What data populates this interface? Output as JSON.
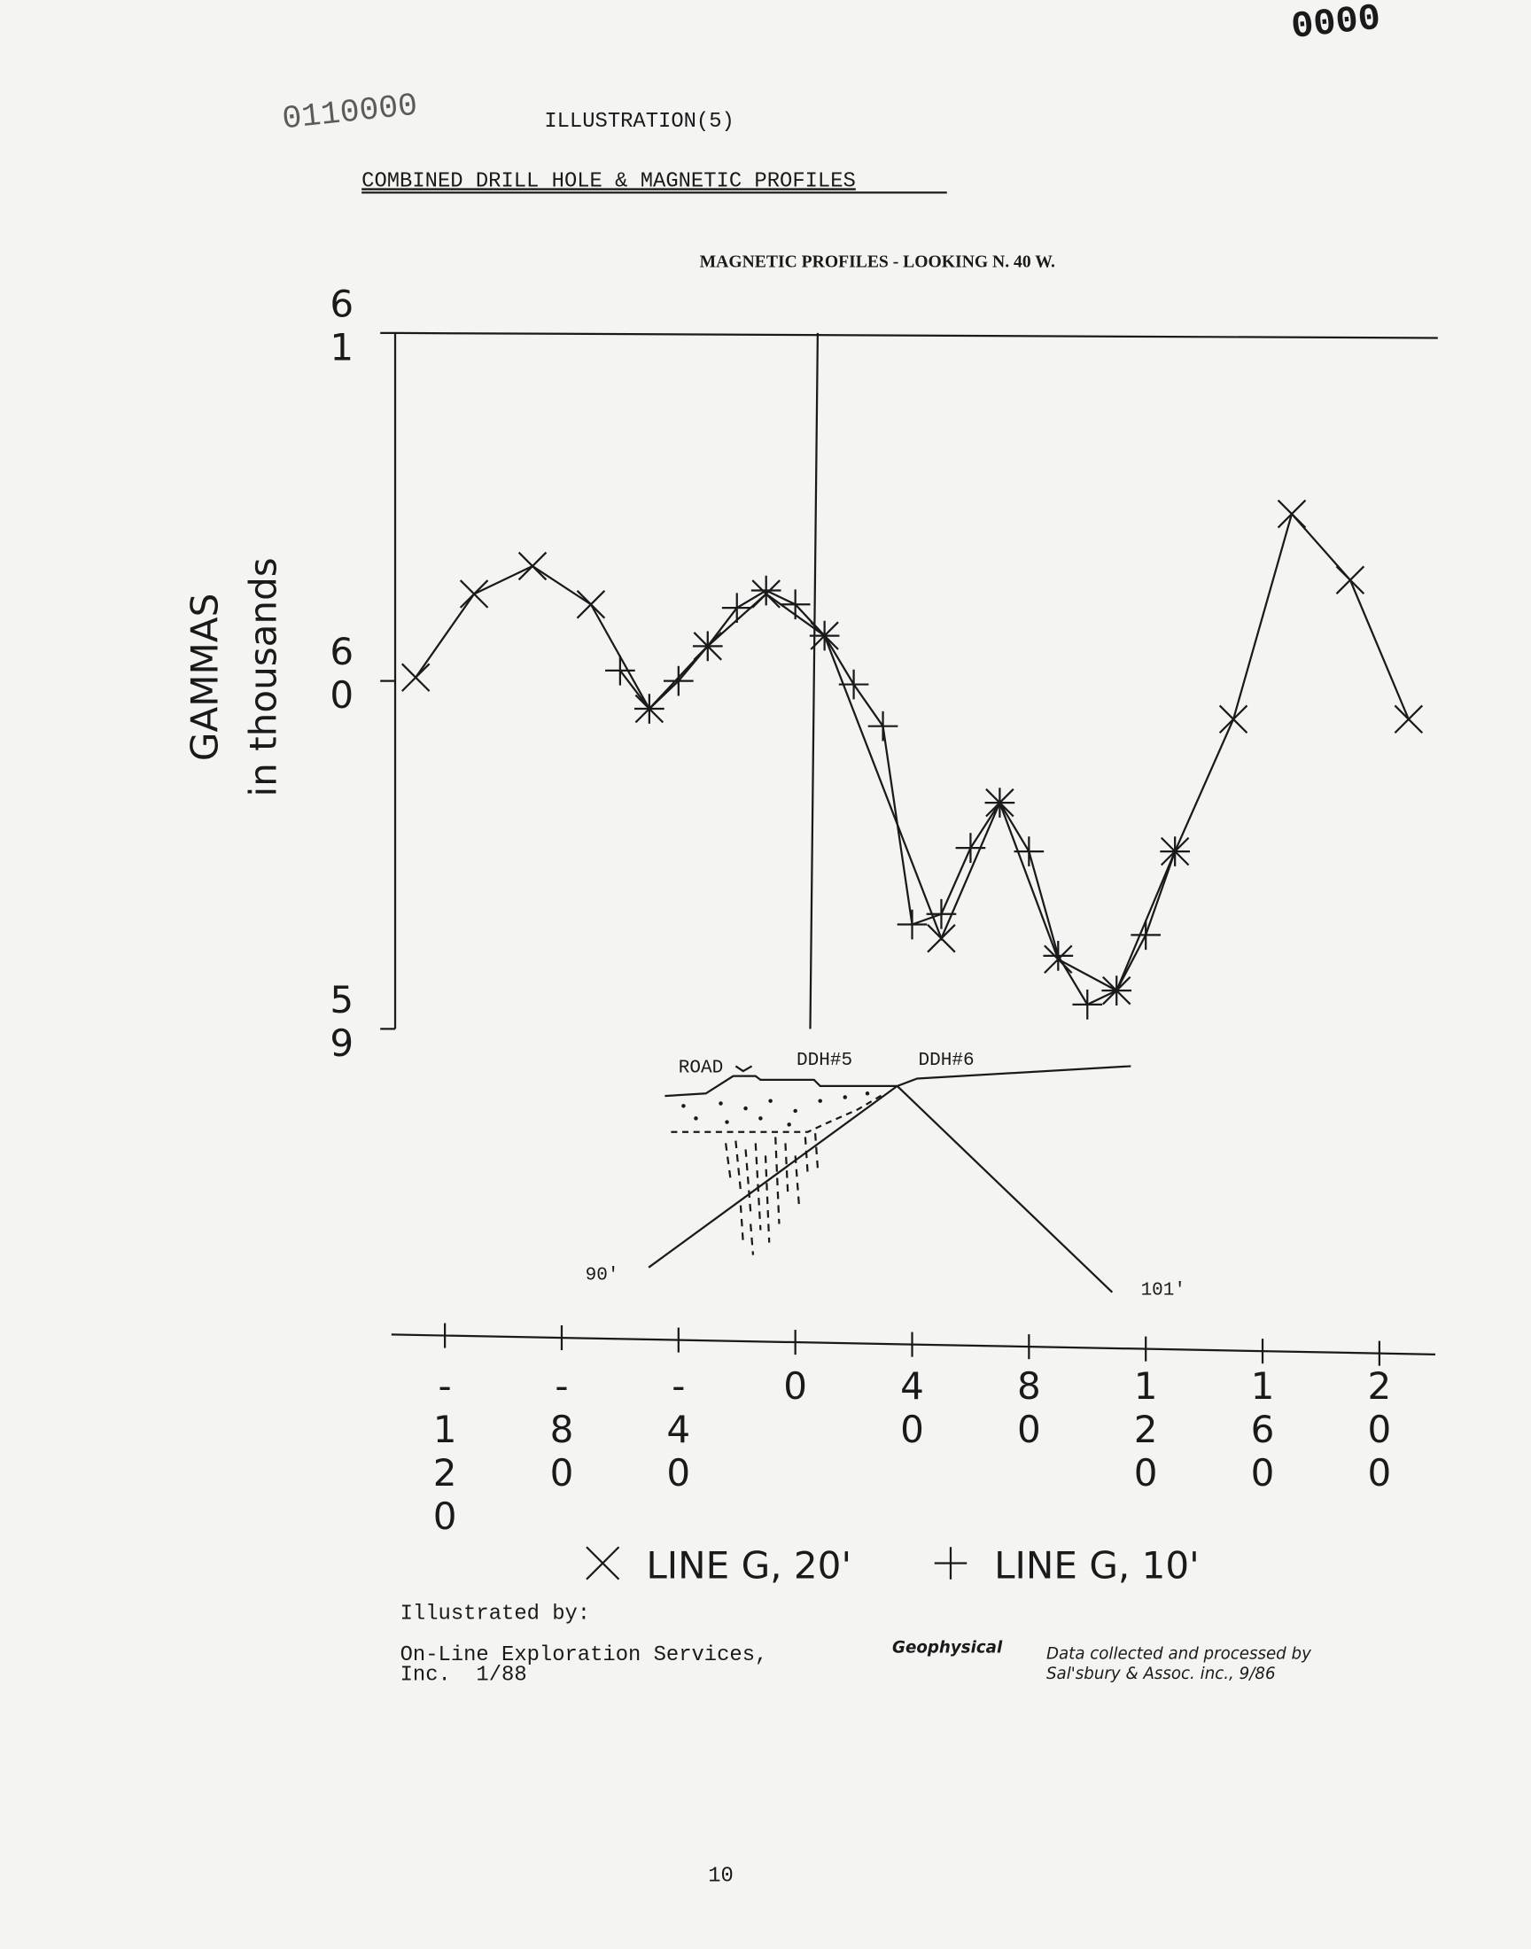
{
  "corner_stamp": "0000",
  "stamp": "0110000",
  "heading": "ILLUSTRATION(5)",
  "title": "COMBINED DRILL HOLE & MAGNETIC PROFILES",
  "chart_data": {
    "type": "line",
    "title": "MAGNETIC PROFILES - LOOKING N. 40 W.",
    "y_label": "GAMMAS",
    "y_sublabel": "in thousands",
    "xlim": [
      -140,
      220
    ],
    "xticks": [
      -120,
      -80,
      -40,
      0,
      40,
      80,
      120,
      160,
      200
    ],
    "ylim": [
      59,
      61
    ],
    "yticks": [
      59,
      60,
      61
    ],
    "series": [
      {
        "name": "LINE G, 20'",
        "marker": "x",
        "color": "#1a1a1a",
        "x": [
          -130,
          -110,
          -90,
          -70,
          -50,
          -30,
          -10,
          10,
          50,
          70,
          90,
          110,
          130,
          150,
          170,
          190,
          210
        ],
        "values": [
          60.01,
          60.25,
          60.33,
          60.22,
          59.92,
          60.1,
          60.25,
          60.13,
          59.26,
          59.65,
          59.2,
          59.11,
          59.51,
          59.89,
          60.48,
          60.29,
          59.89
        ]
      },
      {
        "name": "LINE G, 10'",
        "marker": "+",
        "color": "#1a1a1a",
        "x": [
          -60,
          -50,
          -40,
          -30,
          -20,
          -10,
          0,
          10,
          20,
          30,
          40,
          50,
          60,
          70,
          80,
          90,
          100,
          110,
          120,
          130
        ],
        "values": [
          60.03,
          59.92,
          60.0,
          60.1,
          60.21,
          60.26,
          60.22,
          60.13,
          59.99,
          59.87,
          59.3,
          59.33,
          59.52,
          59.65,
          59.51,
          59.21,
          59.07,
          59.11,
          59.27,
          59.51
        ]
      }
    ],
    "annotations": [
      "ROAD",
      "DDH#5",
      "DDH#6",
      "90'",
      "101'"
    ]
  },
  "credits": {
    "illustrated_by": [
      "Illustrated by:",
      "On-Line Exploration Services,",
      "Inc.  1/88"
    ],
    "geophysical": "Geophysical",
    "processed_by": [
      "Data collected and processed by",
      "Sal'sbury & Assoc. inc., 9/86"
    ]
  },
  "page_number": "10"
}
